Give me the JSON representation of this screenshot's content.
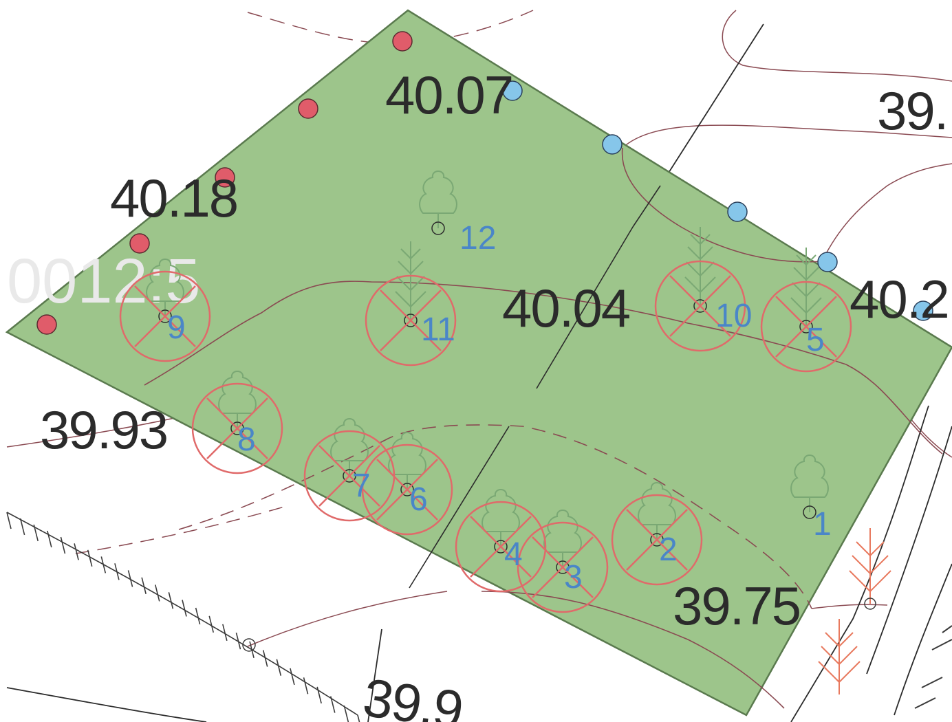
{
  "map": {
    "colors": {
      "parcel_fill": "#9dc58b",
      "parcel_stroke": "#5a7a4e",
      "contour": "#8a4a52",
      "removal_mark": "#e06a6a",
      "tree_outline": "#7aa874",
      "tree_number": "#4a86c8",
      "red_point": "#e05c6a",
      "blue_point": "#86c6ea",
      "elevation_text": "#2b2b2b",
      "orange_tree": "#e8795e"
    },
    "elevations": {
      "e1": "40.07",
      "e2": "40.18",
      "e3": "40.04",
      "e4": "39.93",
      "e5": "39.75",
      "e6": "39.",
      "e7": "40.2",
      "e8": "39.9"
    },
    "faint_label": "0012:5",
    "trees": [
      {
        "id": "t1",
        "number": "1",
        "type": "deciduous",
        "removed": false
      },
      {
        "id": "t2",
        "number": "2",
        "type": "deciduous",
        "removed": true
      },
      {
        "id": "t3",
        "number": "3",
        "type": "deciduous",
        "removed": true
      },
      {
        "id": "t4",
        "number": "4",
        "type": "deciduous",
        "removed": true
      },
      {
        "id": "t5",
        "number": "5",
        "type": "conifer",
        "removed": true
      },
      {
        "id": "t6",
        "number": "6",
        "type": "deciduous",
        "removed": true
      },
      {
        "id": "t7",
        "number": "7",
        "type": "deciduous",
        "removed": true
      },
      {
        "id": "t8",
        "number": "8",
        "type": "deciduous",
        "removed": true
      },
      {
        "id": "t9",
        "number": "9",
        "type": "deciduous",
        "removed": true
      },
      {
        "id": "t10",
        "number": "10",
        "type": "conifer",
        "removed": true
      },
      {
        "id": "t11",
        "number": "11",
        "type": "conifer",
        "removed": true
      },
      {
        "id": "t12",
        "number": "12",
        "type": "deciduous",
        "removed": false
      }
    ]
  }
}
